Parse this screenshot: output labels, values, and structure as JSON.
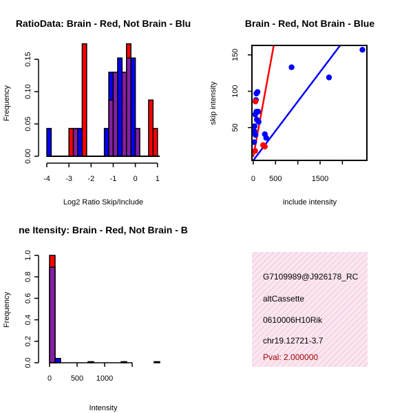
{
  "chart_data": [
    {
      "type": "bar",
      "title": "RatioData: Brain - Red, Not Brain - Blu",
      "xlabel": "Log2 Ratio Skip/Include",
      "ylabel": "Frequency",
      "xlim": [
        -4,
        1.1
      ],
      "ylim": [
        0,
        0.18
      ],
      "xticks": [
        "-4",
        "-3",
        "-2",
        "-1",
        "0",
        "1"
      ],
      "yticks": [
        "0.00",
        "0.05",
        "0.10",
        "0.15"
      ],
      "series": [
        {
          "name": "Not Brain",
          "color": "#0000ff",
          "bins": [
            [
              -4.0,
              0.043
            ],
            [
              -2.8,
              0.043
            ],
            [
              -2.6,
              0.043
            ],
            [
              -1.4,
              0.043
            ],
            [
              -1.2,
              0.13
            ],
            [
              -1.0,
              0.13
            ],
            [
              -0.8,
              0.152
            ],
            [
              -0.6,
              0.13
            ],
            [
              -0.4,
              0.152
            ],
            [
              -0.2,
              0.152
            ],
            [
              0.0,
              0.043
            ]
          ]
        },
        {
          "name": "Brain",
          "color": "#ff0000",
          "bins": [
            [
              -3.0,
              0.043
            ],
            [
              -2.8,
              0.043
            ],
            [
              -2.4,
              0.174
            ],
            [
              -1.2,
              0.087
            ],
            [
              -1.0,
              0.13
            ],
            [
              -0.6,
              0.13
            ],
            [
              -0.4,
              0.174
            ],
            [
              0.0,
              0.043
            ],
            [
              0.6,
              0.087
            ],
            [
              0.8,
              0.043
            ]
          ]
        }
      ]
    },
    {
      "type": "scatter",
      "title": "Brain - Red, Not Brain - Blue",
      "xlabel": "include intensity",
      "ylabel": "skip intensity",
      "xlim": [
        -30,
        2550
      ],
      "ylim": [
        5,
        163
      ],
      "xticks": [
        0,
        500,
        1500
      ],
      "yticks": [
        50,
        100,
        150
      ],
      "series": [
        {
          "name": "Not Brain",
          "color": "#0000ff",
          "points": [
            [
              2450,
              157
            ],
            [
              860,
              133
            ],
            [
              1700,
              119
            ],
            [
              95,
              99
            ],
            [
              70,
              97
            ],
            [
              60,
              88
            ],
            [
              70,
              72
            ],
            [
              110,
              72
            ],
            [
              45,
              68
            ],
            [
              80,
              61
            ],
            [
              120,
              58
            ],
            [
              30,
              52
            ],
            [
              25,
              45
            ],
            [
              50,
              40
            ],
            [
              260,
              41
            ],
            [
              290,
              36
            ],
            [
              20,
              30
            ],
            [
              40,
              18
            ]
          ],
          "fit": [
            [
              0,
              5
            ],
            [
              1950,
              163
            ]
          ]
        },
        {
          "name": "Brain",
          "color": "#ff0000",
          "points": [
            [
              50,
              86
            ],
            [
              40,
              18
            ],
            [
              220,
              26
            ],
            [
              260,
              24
            ]
          ],
          "fit": [
            [
              0,
              10
            ],
            [
              460,
              163
            ]
          ]
        }
      ]
    },
    {
      "type": "bar",
      "title": "ne Itensity: Brain - Red, Not Brain - B",
      "xlabel": "Intensity",
      "ylabel": "Frequency",
      "xlim": [
        -50,
        2000
      ],
      "ylim": [
        0,
        1.0
      ],
      "xticks": [
        "0",
        "500",
        "1000"
      ],
      "yticks": [
        "0.0",
        "0.2",
        "0.4",
        "0.6",
        "0.8",
        "1.0"
      ],
      "series": [
        {
          "name": "Not Brain",
          "color": "#0000ff",
          "bins": [
            [
              0,
              0.89
            ],
            [
              100,
              0.04
            ],
            [
              700,
              0.01
            ],
            [
              1300,
              0.01
            ],
            [
              1900,
              0.01
            ]
          ]
        },
        {
          "name": "Brain",
          "color": "#ff0000",
          "bins": [
            [
              0,
              1.0
            ]
          ]
        }
      ]
    }
  ],
  "info_panel": {
    "id": "G7109989@J926178_RC",
    "event_type": "altCassette",
    "gene": "0610006H10Rik",
    "location": "chr19.12721-3.7",
    "pval": "Pval: 2.000000"
  }
}
